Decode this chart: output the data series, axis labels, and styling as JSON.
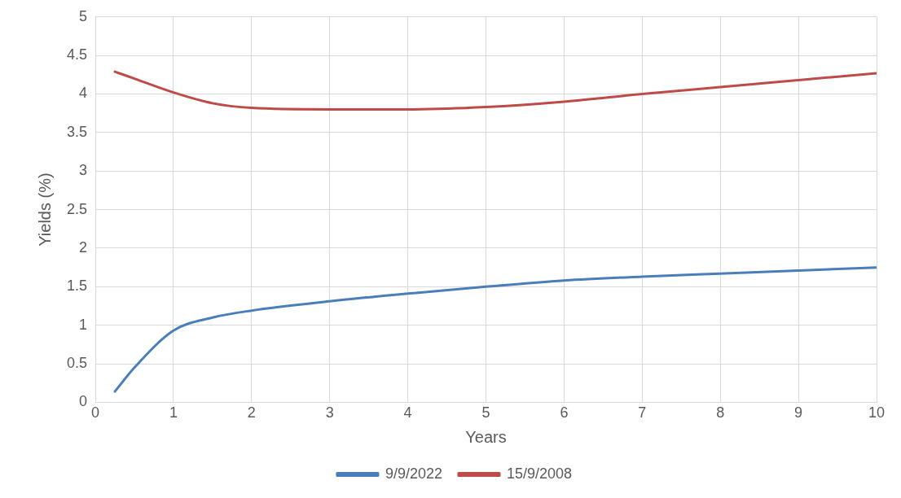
{
  "chart_data": {
    "type": "line",
    "xlabel": "Years",
    "ylabel": "Yields (%)",
    "xlim": [
      0,
      10
    ],
    "xticks": [
      0,
      1,
      2,
      3,
      4,
      5,
      6,
      7,
      8,
      9,
      10
    ],
    "ylim": [
      0,
      5
    ],
    "yticks": [
      0,
      0.5,
      1,
      1.5,
      2,
      2.5,
      3,
      3.5,
      4,
      4.5,
      5
    ],
    "grid": true,
    "legend": "bottom",
    "marker": "none",
    "line_style": "solid",
    "x": [
      0.25,
      0.5,
      1,
      1.5,
      2,
      3,
      4,
      5,
      6,
      7,
      8,
      9,
      10
    ],
    "series": [
      {
        "name": "9/9/2022",
        "color": "#4a7ebb",
        "values": [
          0.14,
          0.45,
          0.93,
          1.1,
          1.19,
          1.31,
          1.41,
          1.5,
          1.58,
          1.63,
          1.67,
          1.71,
          1.75
        ]
      },
      {
        "name": "15/9/2008",
        "color": "#be4b48",
        "values": [
          4.29,
          4.2,
          4.02,
          3.88,
          3.82,
          3.8,
          3.8,
          3.83,
          3.9,
          4.0,
          4.09,
          4.18,
          4.27
        ]
      }
    ]
  }
}
